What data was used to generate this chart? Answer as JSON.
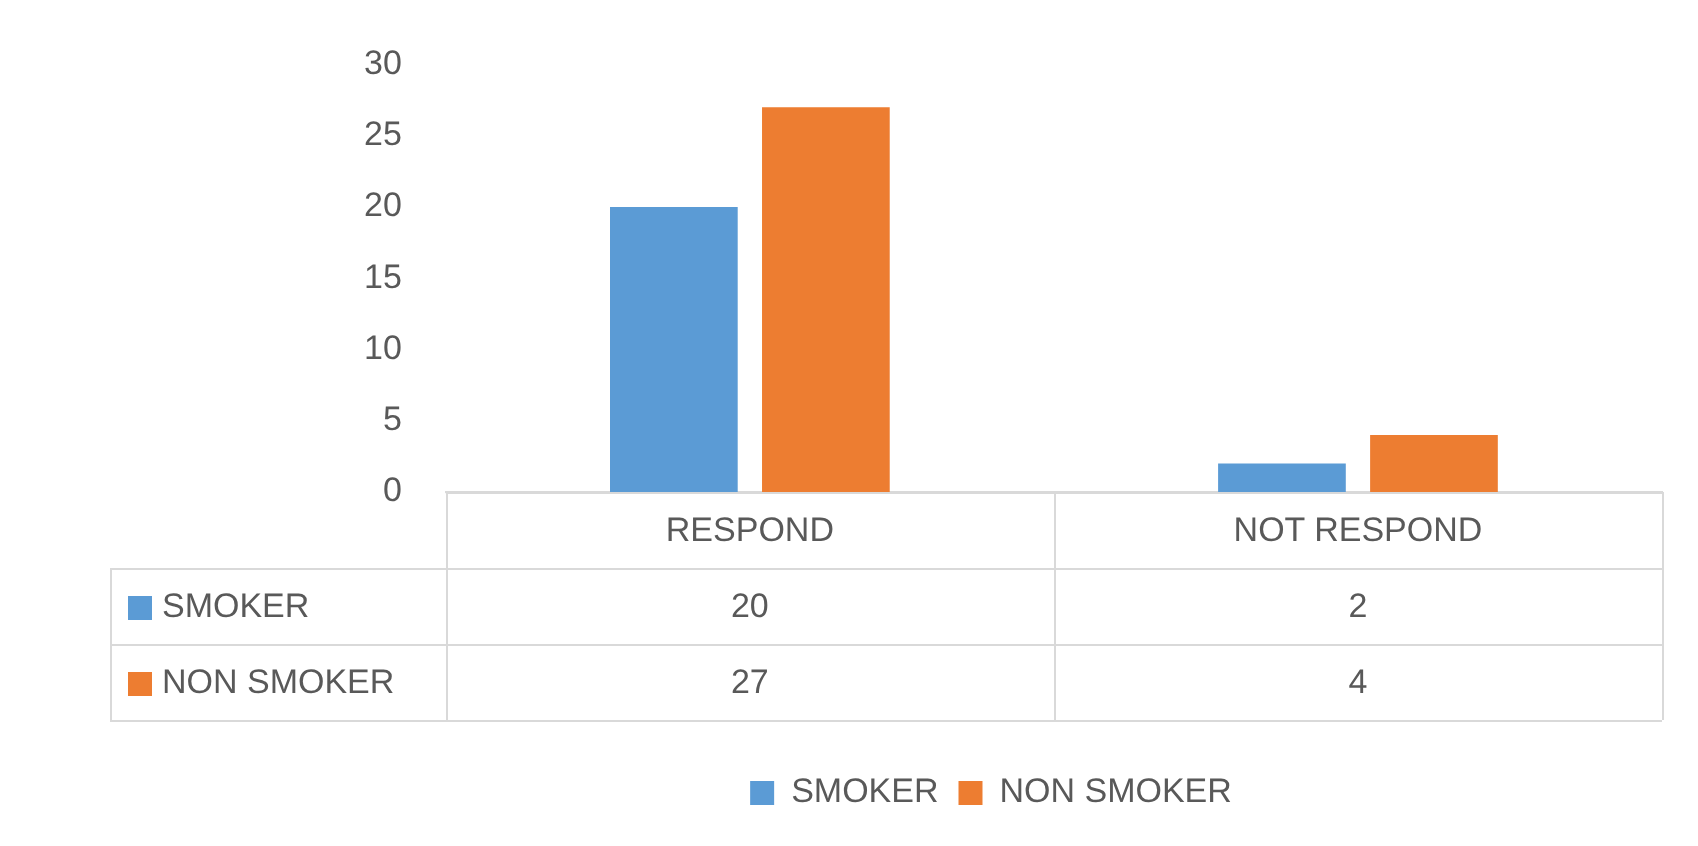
{
  "chart_data": {
    "type": "bar",
    "categories": [
      "RESPOND",
      "NOT RESPOND"
    ],
    "series": [
      {
        "name": "SMOKER",
        "color": "#5b9bd5",
        "values": [
          20,
          2
        ]
      },
      {
        "name": "NON SMOKER",
        "color": "#ed7d31",
        "values": [
          27,
          4
        ]
      }
    ],
    "ylim": [
      0,
      30
    ],
    "yticks": [
      0,
      5,
      10,
      15,
      20,
      25,
      30
    ],
    "grid": false,
    "legend": "bottom",
    "data_labels": true
  }
}
